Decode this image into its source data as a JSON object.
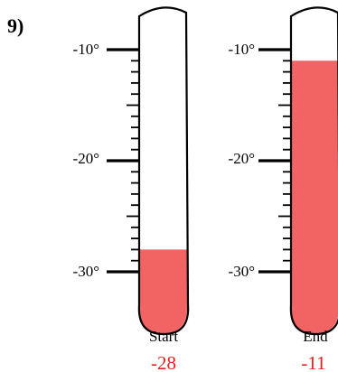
{
  "problem": {
    "number": "9)"
  },
  "thermometers": [
    {
      "caption": "Start",
      "reading_label": "-28",
      "reading_value": -28,
      "tick_labels": [
        "-10°",
        "-20°",
        "-30°"
      ]
    },
    {
      "caption": "End",
      "reading_label": "-11",
      "reading_value": -11,
      "tick_labels": [
        "-10°",
        "-20°",
        "-30°"
      ]
    }
  ],
  "scale": {
    "major_values": [
      -10,
      -20,
      -30
    ],
    "minor_step": 1,
    "top_value": -10,
    "bottom_value": -30
  },
  "colors": {
    "liquid": "#f26464",
    "reading_text": "#ee1c1c",
    "ink": "#000000",
    "tube": "#ffffff"
  }
}
